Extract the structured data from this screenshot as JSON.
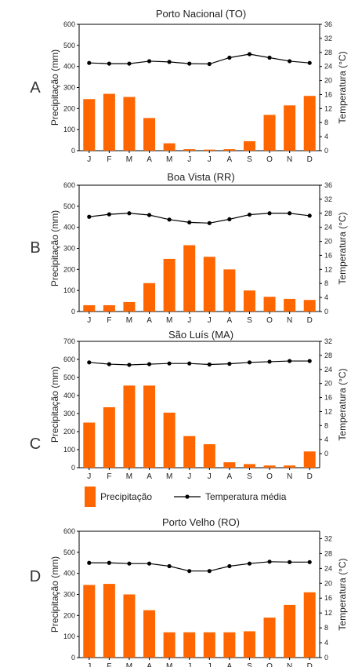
{
  "colors": {
    "bar": "#ff6600",
    "line": "#000000",
    "axis": "#000000"
  },
  "legend": {
    "bar_label": "Precipitação",
    "line_label": "Temperatura média"
  },
  "chart_data": [
    {
      "type": "bar",
      "letter": "A",
      "title": "Porto Nacional (TO)",
      "ylabel": "Precipitação (mm)",
      "y2label": "Temperatura (°C)",
      "categories": [
        "J",
        "F",
        "M",
        "A",
        "M",
        "J",
        "J",
        "A",
        "S",
        "O",
        "N",
        "D"
      ],
      "ylim": [
        0,
        600
      ],
      "yticks": [
        0,
        100,
        200,
        300,
        400,
        500,
        600
      ],
      "y2lim": [
        0,
        36
      ],
      "y2ticks": [
        0,
        4,
        8,
        12,
        16,
        20,
        24,
        28,
        32,
        36
      ],
      "series": [
        {
          "kind": "bar",
          "values": [
            245,
            270,
            255,
            155,
            35,
            7,
            5,
            7,
            45,
            170,
            215,
            260
          ]
        },
        {
          "kind": "line",
          "values": [
            25,
            24.8,
            24.8,
            25.5,
            25.3,
            24.8,
            24.7,
            26.5,
            27.5,
            26.5,
            25.5,
            25
          ]
        }
      ]
    },
    {
      "type": "bar",
      "letter": "B",
      "title": "Boa Vista (RR)",
      "ylabel": "Precipitação (mm)",
      "y2label": "Temperatura (°C)",
      "categories": [
        "J",
        "F",
        "M",
        "A",
        "M",
        "J",
        "J",
        "A",
        "S",
        "O",
        "N",
        "D"
      ],
      "ylim": [
        0,
        600
      ],
      "yticks": [
        0,
        100,
        200,
        300,
        400,
        500,
        600
      ],
      "y2lim": [
        0,
        36
      ],
      "y2ticks": [
        0,
        4,
        8,
        12,
        16,
        20,
        24,
        28,
        32,
        36
      ],
      "series": [
        {
          "kind": "bar",
          "values": [
            30,
            30,
            45,
            135,
            250,
            315,
            260,
            200,
            100,
            70,
            60,
            55
          ]
        },
        {
          "kind": "line",
          "values": [
            27,
            27.7,
            28,
            27.5,
            26.2,
            25.4,
            25.2,
            26.3,
            27.6,
            28,
            28,
            27.3
          ]
        }
      ]
    },
    {
      "type": "bar",
      "letter": "C",
      "title": "São Luís (MA)",
      "ylabel": "Precipitação (mm)",
      "y2label": "Temperatura (°C)",
      "categories": [
        "J",
        "F",
        "M",
        "A",
        "M",
        "J",
        "J",
        "A",
        "S",
        "O",
        "N",
        "D"
      ],
      "ylim": [
        0,
        700
      ],
      "yticks": [
        0,
        100,
        200,
        300,
        400,
        500,
        600,
        700
      ],
      "y2lim": [
        -4,
        32
      ],
      "y2ticks": [
        0,
        4,
        8,
        12,
        16,
        20,
        24,
        28,
        32
      ],
      "series": [
        {
          "kind": "bar",
          "values": [
            250,
            335,
            455,
            455,
            305,
            175,
            130,
            30,
            20,
            12,
            12,
            90
          ]
        },
        {
          "kind": "line",
          "values": [
            26,
            25.5,
            25.3,
            25.5,
            25.7,
            25.7,
            25.4,
            25.6,
            26,
            26.2,
            26.4,
            26.4
          ]
        }
      ]
    },
    {
      "type": "bar",
      "letter": "D",
      "title": "Porto Velho (RO)",
      "ylabel": "Precipitação (mm)",
      "y2label": "Temperatura (°C)",
      "categories": [
        "J",
        "F",
        "M",
        "A",
        "M",
        "J",
        "J",
        "A",
        "S",
        "O",
        "N",
        "D"
      ],
      "ylim": [
        0,
        600
      ],
      "yticks": [
        0,
        100,
        200,
        300,
        400,
        500,
        600
      ],
      "y2lim": [
        0,
        34
      ],
      "y2ticks": [
        0,
        4,
        8,
        12,
        16,
        20,
        24,
        28,
        32
      ],
      "series": [
        {
          "kind": "bar",
          "values": [
            345,
            350,
            300,
            225,
            120,
            120,
            120,
            120,
            125,
            190,
            250,
            310
          ]
        },
        {
          "kind": "line",
          "values": [
            25.5,
            25.5,
            25.3,
            25.3,
            24.6,
            23.3,
            23.3,
            24.6,
            25.3,
            25.8,
            25.7,
            25.7
          ]
        }
      ]
    }
  ]
}
